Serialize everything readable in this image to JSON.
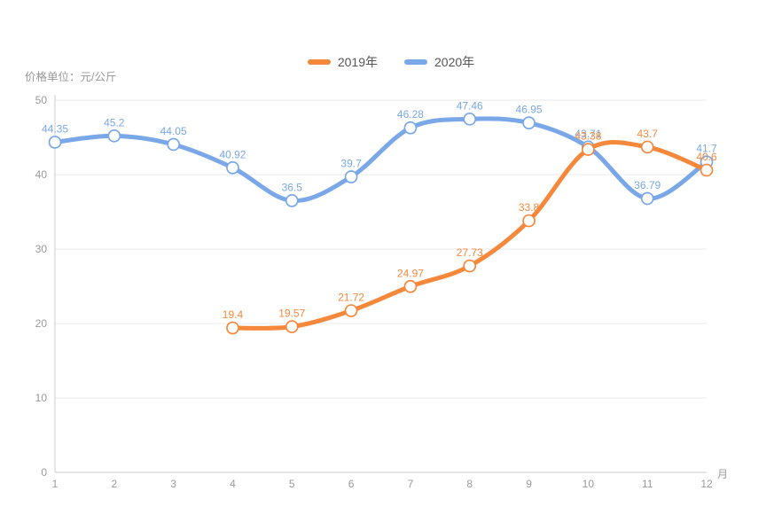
{
  "chart_data": {
    "type": "line",
    "smooth": true,
    "title": "",
    "xlabel": "月",
    "ylabel": "价格单位：元/公斤",
    "categories": [
      "1",
      "2",
      "3",
      "4",
      "5",
      "6",
      "7",
      "8",
      "9",
      "10",
      "11",
      "12"
    ],
    "yticks": [
      0,
      10,
      20,
      30,
      40,
      50
    ],
    "ylim": [
      0,
      50
    ],
    "grid": true,
    "legend_position": "top-center",
    "series": [
      {
        "name": "2019年",
        "color": "#f6883c",
        "values": [
          null,
          null,
          null,
          19.4,
          19.57,
          21.72,
          24.97,
          27.73,
          33.8,
          43.38,
          43.7,
          40.6
        ]
      },
      {
        "name": "2020年",
        "color": "#79a7e8",
        "values": [
          44.35,
          45.2,
          44.05,
          40.92,
          36.5,
          39.7,
          46.28,
          47.46,
          46.95,
          43.71,
          36.79,
          41.7
        ]
      }
    ],
    "style": {
      "background": "#ffffff",
      "grid_line_color": "#e8e8e8",
      "axis_line_color": "#cccccc",
      "tick_label_color": "#999999",
      "legend_text_color": "#555555",
      "marker_fill": "#ffffff",
      "line_width": 5,
      "marker_radius": 6.5,
      "label_font_size": 12
    }
  }
}
